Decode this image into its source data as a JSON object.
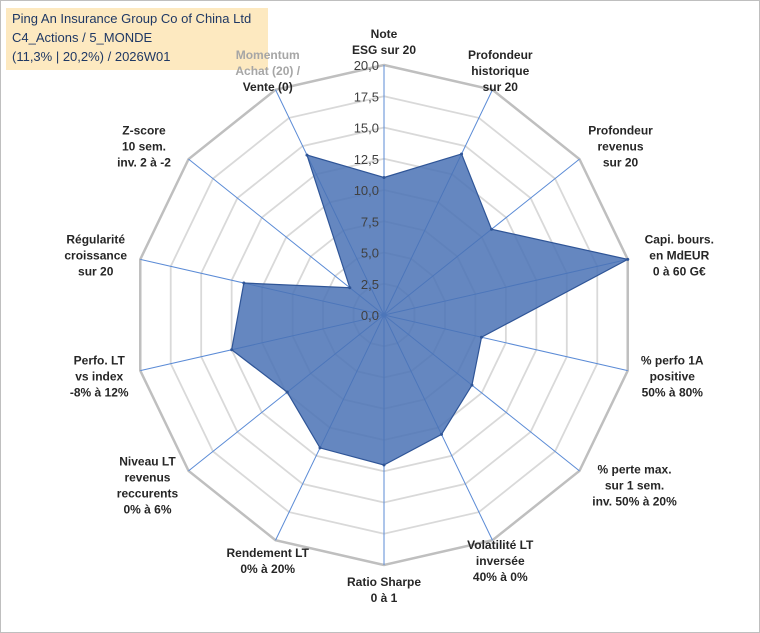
{
  "header": {
    "line1": "Ping An Insurance Group Co of China Ltd",
    "line2": "C4_Actions / 5_MONDE",
    "line3": "(11,3% | 20,2%) / 2026W01"
  },
  "chart_data": {
    "type": "radar",
    "rmin": 0,
    "rmax": 20,
    "tick_labels": [
      "0,0",
      "2,5",
      "5,0",
      "7,5",
      "10,0",
      "12,5",
      "15,0",
      "17,5",
      "20,0"
    ],
    "axes": [
      {
        "lines": [
          "Note",
          "ESG sur 20"
        ]
      },
      {
        "lines": [
          "Profondeur",
          "historique",
          "sur 20"
        ]
      },
      {
        "lines": [
          "Profondeur",
          "revenus",
          "sur 20"
        ]
      },
      {
        "lines": [
          "Capi. bours.",
          "en MdEUR",
          "0 à 60 G€"
        ]
      },
      {
        "lines": [
          "% perfo 1A",
          "positive",
          "50% à 80%"
        ]
      },
      {
        "lines": [
          "% perte max.",
          "sur 1 sem.",
          "inv. 50% à 20%"
        ]
      },
      {
        "lines": [
          "Volatilité LT",
          "inversée",
          "40% à 0%"
        ]
      },
      {
        "lines": [
          "Ratio Sharpe",
          "0 à 1"
        ]
      },
      {
        "lines": [
          "Rendement LT",
          "0% à 20%"
        ]
      },
      {
        "lines": [
          "Niveau LT",
          "revenus",
          "reccurents",
          "0% à 6%"
        ]
      },
      {
        "lines": [
          "Perfo. LT",
          "vs index",
          "-8% à 12%"
        ]
      },
      {
        "lines": [
          "Régularité",
          "croissance",
          "sur 20"
        ]
      },
      {
        "lines": [
          "Z-score",
          "10 sem.",
          "inv. 2 à -2"
        ]
      },
      {
        "lines": [
          "Momentum",
          "Achat (20) /",
          "Vente (0)"
        ]
      }
    ],
    "series": [
      {
        "name": "Ping An Insurance Group Co of China Ltd",
        "values": [
          11.0,
          14.3,
          11.0,
          20.0,
          8.0,
          9.0,
          10.6,
          12.0,
          11.8,
          9.9,
          12.5,
          11.5,
          3.5,
          14.2
        ]
      }
    ],
    "colors": {
      "fill": "#4a72b5",
      "stroke": "#2f5597",
      "grid": "#d9d9d9",
      "outer": "#bfbfbf",
      "spoke": "#5b8bd6"
    }
  }
}
